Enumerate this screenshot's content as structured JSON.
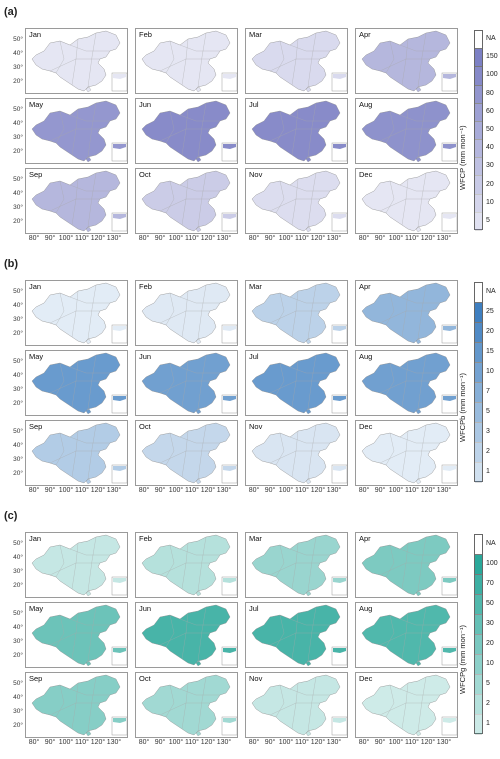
{
  "months": [
    "Jan",
    "Feb",
    "Mar",
    "Apr",
    "May",
    "Jun",
    "Jul",
    "Aug",
    "Sep",
    "Oct",
    "Nov",
    "Dec"
  ],
  "lat_ticks": [
    "50°",
    "40°",
    "30°",
    "20°"
  ],
  "lon_ticks": [
    "80°",
    "90°",
    "100°",
    "110°",
    "120°",
    "130°"
  ],
  "panels": [
    {
      "label": "(a)",
      "legend_title": "WFCP (mm mon⁻¹)",
      "legend_ticks": [
        "NA",
        "150",
        "100",
        "80",
        "60",
        "50",
        "40",
        "30",
        "20",
        "10",
        "5"
      ],
      "color": "#7c80c4",
      "intensity": [
        0.12,
        0.12,
        0.22,
        0.55,
        0.85,
        0.95,
        0.95,
        0.9,
        0.55,
        0.35,
        0.2,
        0.12
      ]
    },
    {
      "label": "(b)",
      "legend_title": "WFCPb (mm mon⁻¹)",
      "legend_ticks": [
        "NA",
        "25",
        "20",
        "15",
        "10",
        "7",
        "5",
        "3",
        "2",
        "1"
      ],
      "color": "#3f7fc0",
      "intensity": [
        0.06,
        0.08,
        0.3,
        0.55,
        0.8,
        0.75,
        0.8,
        0.75,
        0.35,
        0.25,
        0.12,
        0.06
      ]
    },
    {
      "label": "(c)",
      "legend_title": "WFCPg (mm mon⁻¹)",
      "legend_ticks": [
        "NA",
        "100",
        "70",
        "50",
        "30",
        "20",
        "10",
        "5",
        "2",
        "1"
      ],
      "color": "#2aa89a",
      "intensity": [
        0.2,
        0.3,
        0.45,
        0.6,
        0.7,
        0.9,
        0.9,
        0.85,
        0.55,
        0.4,
        0.2,
        0.15
      ]
    }
  ]
}
